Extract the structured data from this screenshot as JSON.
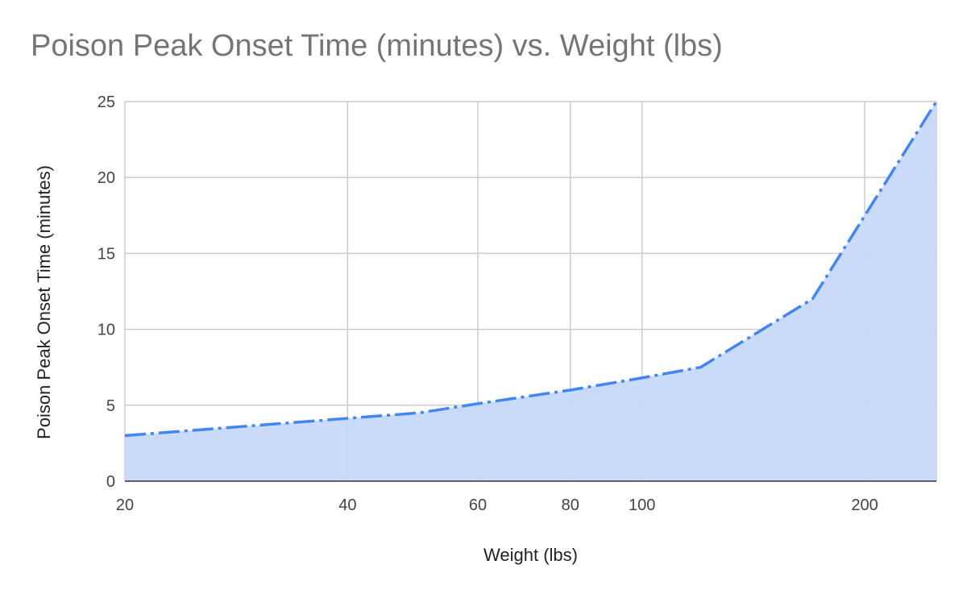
{
  "chart_data": {
    "type": "area",
    "title": "Poison Peak Onset Time (minutes) vs. Weight (lbs)",
    "xlabel": "Weight (lbs)",
    "ylabel": "Poison Peak Onset Time (minutes)",
    "x_scale": "log",
    "xlim": [
      20,
      250
    ],
    "ylim": [
      0,
      25
    ],
    "x_ticks": [
      20,
      40,
      60,
      80,
      100,
      200
    ],
    "y_ticks": [
      0,
      5,
      10,
      15,
      20,
      25
    ],
    "grid": true,
    "legend": "none",
    "series": [
      {
        "x": [
          20,
          50,
          60,
          80,
          100,
          120,
          170,
          250
        ],
        "y": [
          3.0,
          4.5,
          5.1,
          6.0,
          6.8,
          7.5,
          12.0,
          25.0
        ],
        "line_style": "dash-dot",
        "color": "#4285f4",
        "fill": "#c6d9f8"
      }
    ]
  }
}
